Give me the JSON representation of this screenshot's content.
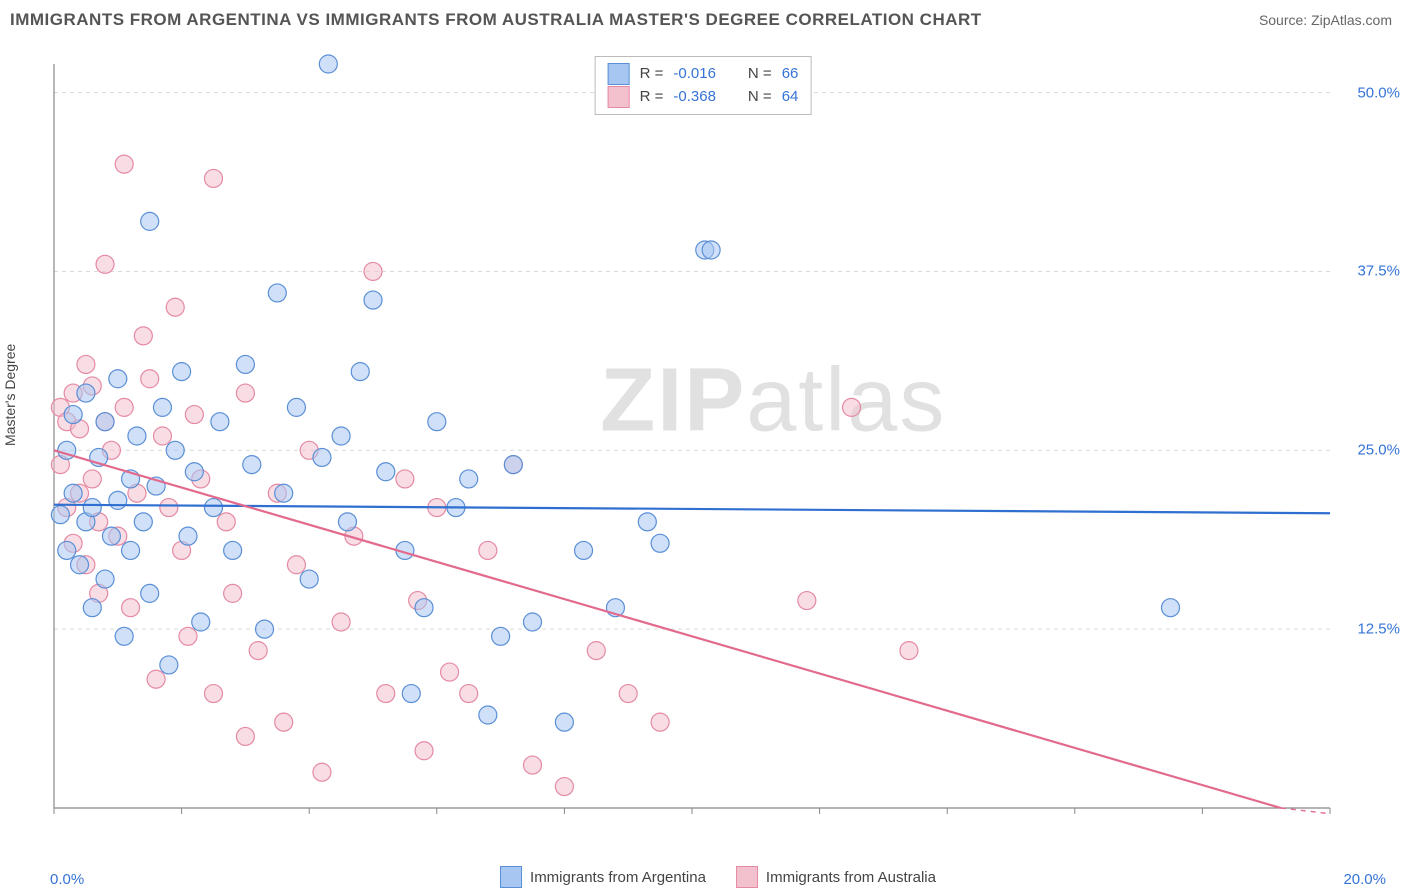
{
  "title": "IMMIGRANTS FROM ARGENTINA VS IMMIGRANTS FROM AUSTRALIA MASTER'S DEGREE CORRELATION CHART",
  "source": "Source: ZipAtlas.com",
  "watermark_a": "ZIP",
  "watermark_b": "atlas",
  "ylabel": "Master's Degree",
  "chart": {
    "type": "scatter",
    "xlim": [
      0,
      20
    ],
    "ylim": [
      0,
      52
    ],
    "ytick_values": [
      12.5,
      25.0,
      37.5,
      50.0
    ],
    "ytick_labels": [
      "12.5%",
      "25.0%",
      "37.5%",
      "50.0%"
    ],
    "xtick_left": "0.0%",
    "xtick_right": "20.0%",
    "grid_color": "#d9d9d9",
    "axis_color": "#888888",
    "background_color": "#ffffff",
    "marker_radius": 9,
    "marker_opacity": 0.55,
    "line_width": 2.2,
    "series": [
      {
        "id": "argentina",
        "label": "Immigrants from Argentina",
        "color_fill": "#a7c7f2",
        "color_stroke": "#5a8fd6",
        "trend": {
          "y_at_x0": 21.2,
          "y_at_xmax": 20.6,
          "line_color": "#2f6fd0"
        },
        "R": "-0.016",
        "N": "66",
        "points": [
          [
            0.1,
            20.5
          ],
          [
            0.2,
            25.0
          ],
          [
            0.2,
            18.0
          ],
          [
            0.3,
            27.5
          ],
          [
            0.3,
            22.0
          ],
          [
            0.4,
            17.0
          ],
          [
            0.5,
            20.0
          ],
          [
            0.5,
            29.0
          ],
          [
            0.6,
            14.0
          ],
          [
            0.6,
            21.0
          ],
          [
            0.7,
            24.5
          ],
          [
            0.8,
            27.0
          ],
          [
            0.8,
            16.0
          ],
          [
            0.9,
            19.0
          ],
          [
            1.0,
            30.0
          ],
          [
            1.0,
            21.5
          ],
          [
            1.1,
            12.0
          ],
          [
            1.2,
            23.0
          ],
          [
            1.2,
            18.0
          ],
          [
            1.3,
            26.0
          ],
          [
            1.4,
            20.0
          ],
          [
            1.5,
            41.0
          ],
          [
            1.5,
            15.0
          ],
          [
            1.6,
            22.5
          ],
          [
            1.7,
            28.0
          ],
          [
            1.8,
            10.0
          ],
          [
            1.9,
            25.0
          ],
          [
            2.0,
            30.5
          ],
          [
            2.1,
            19.0
          ],
          [
            2.2,
            23.5
          ],
          [
            2.3,
            13.0
          ],
          [
            2.5,
            21.0
          ],
          [
            2.6,
            27.0
          ],
          [
            2.8,
            18.0
          ],
          [
            3.0,
            31.0
          ],
          [
            3.1,
            24.0
          ],
          [
            3.3,
            12.5
          ],
          [
            3.5,
            36.0
          ],
          [
            3.6,
            22.0
          ],
          [
            3.8,
            28.0
          ],
          [
            4.0,
            16.0
          ],
          [
            4.2,
            24.5
          ],
          [
            4.3,
            52.0
          ],
          [
            4.5,
            26.0
          ],
          [
            4.6,
            20.0
          ],
          [
            4.8,
            30.5
          ],
          [
            5.0,
            35.5
          ],
          [
            5.2,
            23.5
          ],
          [
            5.5,
            18.0
          ],
          [
            5.6,
            8.0
          ],
          [
            5.8,
            14.0
          ],
          [
            6.0,
            27.0
          ],
          [
            6.3,
            21.0
          ],
          [
            6.5,
            23.0
          ],
          [
            6.8,
            6.5
          ],
          [
            7.0,
            12.0
          ],
          [
            7.2,
            24.0
          ],
          [
            7.5,
            13.0
          ],
          [
            8.0,
            6.0
          ],
          [
            8.3,
            18.0
          ],
          [
            8.8,
            14.0
          ],
          [
            10.2,
            39.0
          ],
          [
            10.3,
            39.0
          ],
          [
            9.3,
            20.0
          ],
          [
            9.5,
            18.5
          ],
          [
            17.5,
            14.0
          ]
        ]
      },
      {
        "id": "australia",
        "label": "Immigrants from Australia",
        "color_fill": "#f3c1cd",
        "color_stroke": "#e58aa3",
        "trend": {
          "y_at_x0": 25.0,
          "y_at_xmax": -1.0,
          "line_color": "#e26a8c"
        },
        "R": "-0.368",
        "N": "64",
        "points": [
          [
            0.1,
            24.0
          ],
          [
            0.1,
            28.0
          ],
          [
            0.2,
            21.0
          ],
          [
            0.2,
            27.0
          ],
          [
            0.3,
            29.0
          ],
          [
            0.3,
            18.5
          ],
          [
            0.4,
            26.5
          ],
          [
            0.4,
            22.0
          ],
          [
            0.5,
            31.0
          ],
          [
            0.5,
            17.0
          ],
          [
            0.6,
            23.0
          ],
          [
            0.6,
            29.5
          ],
          [
            0.7,
            15.0
          ],
          [
            0.7,
            20.0
          ],
          [
            0.8,
            38.0
          ],
          [
            0.8,
            27.0
          ],
          [
            0.9,
            25.0
          ],
          [
            1.0,
            19.0
          ],
          [
            1.1,
            45.0
          ],
          [
            1.1,
            28.0
          ],
          [
            1.2,
            14.0
          ],
          [
            1.3,
            22.0
          ],
          [
            1.4,
            33.0
          ],
          [
            1.5,
            30.0
          ],
          [
            1.6,
            9.0
          ],
          [
            1.7,
            26.0
          ],
          [
            1.8,
            21.0
          ],
          [
            1.9,
            35.0
          ],
          [
            2.0,
            18.0
          ],
          [
            2.1,
            12.0
          ],
          [
            2.2,
            27.5
          ],
          [
            2.3,
            23.0
          ],
          [
            2.5,
            44.0
          ],
          [
            2.5,
            8.0
          ],
          [
            2.7,
            20.0
          ],
          [
            2.8,
            15.0
          ],
          [
            3.0,
            29.0
          ],
          [
            3.0,
            5.0
          ],
          [
            3.2,
            11.0
          ],
          [
            3.5,
            22.0
          ],
          [
            3.6,
            6.0
          ],
          [
            3.8,
            17.0
          ],
          [
            4.0,
            25.0
          ],
          [
            4.2,
            2.5
          ],
          [
            4.5,
            13.0
          ],
          [
            4.7,
            19.0
          ],
          [
            5.0,
            37.5
          ],
          [
            5.2,
            8.0
          ],
          [
            5.5,
            23.0
          ],
          [
            5.7,
            14.5
          ],
          [
            5.8,
            4.0
          ],
          [
            6.0,
            21.0
          ],
          [
            6.2,
            9.5
          ],
          [
            6.5,
            8.0
          ],
          [
            6.8,
            18.0
          ],
          [
            7.2,
            24.0
          ],
          [
            7.5,
            3.0
          ],
          [
            8.0,
            1.5
          ],
          [
            8.5,
            11.0
          ],
          [
            9.0,
            8.0
          ],
          [
            9.5,
            6.0
          ],
          [
            11.8,
            14.5
          ],
          [
            12.5,
            28.0
          ],
          [
            13.4,
            11.0
          ]
        ]
      }
    ]
  },
  "corr_legend_labels": {
    "R": "R =",
    "N": "N ="
  }
}
